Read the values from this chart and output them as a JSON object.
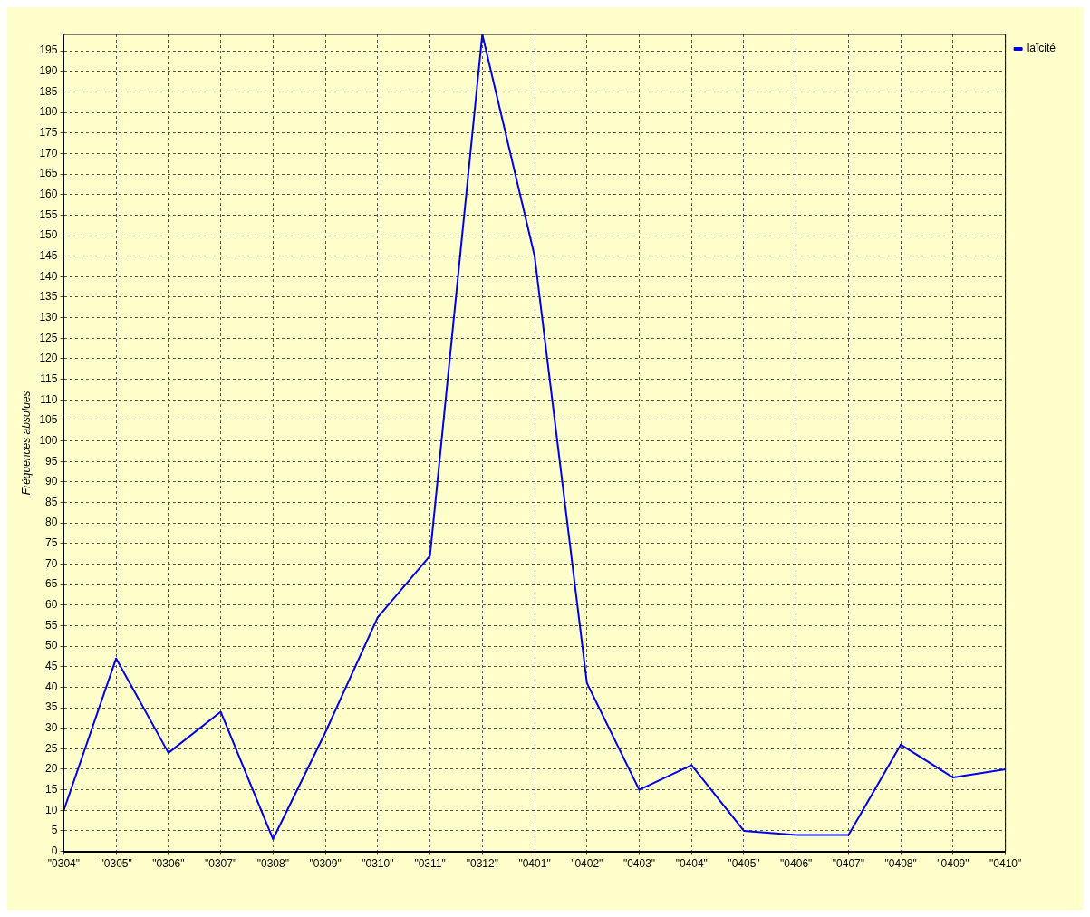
{
  "chart_data": {
    "type": "line",
    "ylabel": "Fréquences absolues",
    "categories": [
      "\"0304\"",
      "\"0305\"",
      "\"0306\"",
      "\"0307\"",
      "\"0308\"",
      "\"0309\"",
      "\"0310\"",
      "\"0311\"",
      "\"0312\"",
      "\"0401\"",
      "\"0402\"",
      "\"0403\"",
      "\"0404\"",
      "\"0405\"",
      "\"0406\"",
      "\"0407\"",
      "\"0408\"",
      "\"0409\"",
      "\"0410\""
    ],
    "series": [
      {
        "name": "laïcité",
        "color": "#0000ee",
        "values": [
          10,
          47,
          24,
          34,
          3,
          29,
          57,
          72,
          199,
          145,
          41,
          15,
          21,
          5,
          4,
          4,
          26,
          18,
          20
        ]
      }
    ],
    "ylim": [
      0,
      199
    ],
    "yticks": [
      0,
      5,
      10,
      15,
      20,
      25,
      30,
      35,
      40,
      45,
      50,
      55,
      60,
      65,
      70,
      75,
      80,
      85,
      90,
      95,
      100,
      105,
      110,
      115,
      120,
      125,
      130,
      135,
      140,
      145,
      150,
      155,
      160,
      165,
      170,
      175,
      180,
      185,
      190,
      195
    ],
    "grid": true,
    "legend": "top right",
    "marker": "none",
    "line_style": "solid"
  }
}
